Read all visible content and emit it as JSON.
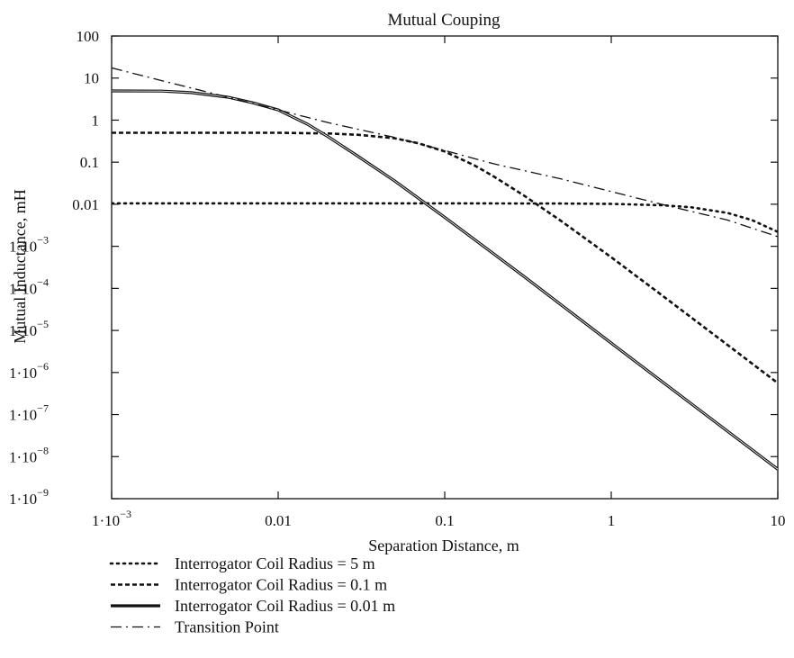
{
  "chart_data": {
    "type": "line",
    "title": "Mutual Couping",
    "xlabel": "Separation Distance, m",
    "ylabel": "Mutual Inductance, mH",
    "xscale": "log",
    "yscale": "log",
    "xlim": [
      0.001,
      10
    ],
    "ylim": [
      1e-09,
      100
    ],
    "x_ticks": [
      {
        "base": "1·10",
        "exp": "−3"
      },
      {
        "base": "0.01",
        "exp": ""
      },
      {
        "base": "0.1",
        "exp": ""
      },
      {
        "base": "1",
        "exp": ""
      },
      {
        "base": "10",
        "exp": ""
      }
    ],
    "y_ticks": [
      {
        "base": "100",
        "exp": ""
      },
      {
        "base": "10",
        "exp": ""
      },
      {
        "base": "1",
        "exp": ""
      },
      {
        "base": "0.1",
        "exp": ""
      },
      {
        "base": "0.01",
        "exp": ""
      },
      {
        "base": "1·10",
        "exp": "−3"
      },
      {
        "base": "1·10",
        "exp": "−4"
      },
      {
        "base": "1·10",
        "exp": "−5"
      },
      {
        "base": "1·10",
        "exp": "−6"
      },
      {
        "base": "1·10",
        "exp": "−7"
      },
      {
        "base": "1·10",
        "exp": "−8"
      },
      {
        "base": "1·10",
        "exp": "−9"
      }
    ],
    "grid": false,
    "legend_position": "bottom",
    "series": [
      {
        "name": "Interrogator Coil Radius = 5 m",
        "style": "dotted",
        "color": "#111111",
        "x": [
          0.001,
          0.01,
          0.1,
          0.5,
          1,
          2,
          3,
          5,
          7,
          10
        ],
        "y": [
          0.0105,
          0.0105,
          0.0105,
          0.0104,
          0.0102,
          0.0095,
          0.0085,
          0.0062,
          0.0042,
          0.0022
        ]
      },
      {
        "name": "Interrogator Coil Radius = 0.1 m",
        "style": "dashed",
        "color": "#111111",
        "x": [
          0.001,
          0.01,
          0.02,
          0.03,
          0.05,
          0.07,
          0.1,
          0.15,
          0.2,
          0.3,
          0.5,
          1,
          2,
          5,
          10
        ],
        "y": [
          0.5,
          0.5,
          0.48,
          0.45,
          0.37,
          0.28,
          0.18,
          0.085,
          0.044,
          0.016,
          0.004,
          0.00055,
          7e-05,
          4.5e-06,
          5.6e-07
        ]
      },
      {
        "name": "Interrogator Coil Radius = 0.01 m",
        "style": "solid",
        "color": "#111111",
        "x": [
          0.001,
          0.002,
          0.003,
          0.005,
          0.007,
          0.01,
          0.015,
          0.02,
          0.03,
          0.05,
          0.1,
          0.3,
          1,
          3,
          10
        ],
        "y": [
          4.95,
          4.9,
          4.5,
          3.5,
          2.6,
          1.75,
          0.8,
          0.4,
          0.14,
          0.036,
          0.0049,
          0.00019,
          5e-06,
          1.85e-07,
          5e-09
        ]
      },
      {
        "name": "Transition Point",
        "style": "dashdot",
        "color": "#111111",
        "x": [
          0.001,
          0.002,
          0.005,
          0.01,
          0.02,
          0.05,
          0.1,
          0.2,
          0.5,
          1,
          2,
          5,
          10
        ],
        "y": [
          17.5,
          8.7,
          3.5,
          1.75,
          0.87,
          0.39,
          0.19,
          0.09,
          0.04,
          0.02,
          0.01,
          0.0042,
          0.0017
        ]
      }
    ]
  }
}
